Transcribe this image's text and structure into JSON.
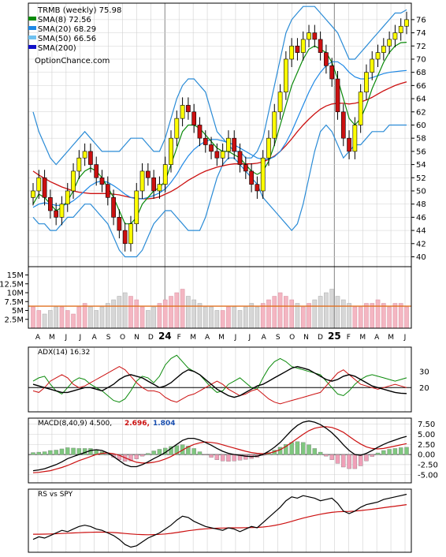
{
  "chart_data": {
    "type": "line",
    "ticker_label": "TRMB (weekly) 75.98",
    "watermark": "OptionChance.com",
    "legend": [
      {
        "label": "SMA(8) 72.56",
        "color": "#0a8a0a"
      },
      {
        "label": "SMA(20) 68.29",
        "color": "#1e88e5"
      },
      {
        "label": "SMA(50) 66.56",
        "color": "#6ec1f0"
      },
      {
        "label": "SMA(200)",
        "color": "#1010c8"
      }
    ],
    "x_labels": [
      "A",
      "M",
      "J",
      "J",
      "A",
      "S",
      "O",
      "N",
      "D",
      "24",
      "F",
      "M",
      "A",
      "M",
      "J",
      "J",
      "A",
      "S",
      "O",
      "N",
      "D",
      "25",
      "F",
      "M",
      "A",
      "M",
      "J"
    ],
    "price_axis": {
      "ticks": [
        40,
        42,
        44,
        46,
        48,
        50,
        52,
        54,
        56,
        58,
        60,
        62,
        64,
        66,
        68,
        70,
        72,
        74,
        76
      ],
      "min": 38.5,
      "max": 78.5
    },
    "volume_axis": {
      "ticks": [
        "2.5M",
        "5M",
        "7.5M",
        "10M",
        "12.5M",
        "15M"
      ],
      "values": [
        2.5,
        5,
        7.5,
        10,
        12.5,
        15
      ],
      "max": 16
    },
    "price_series": {
      "close": [
        50,
        52,
        49,
        47,
        46,
        48,
        50,
        53,
        55,
        56,
        54,
        52,
        51,
        49,
        46,
        44,
        42,
        45,
        50,
        53,
        52,
        50,
        51,
        54,
        58,
        61,
        63,
        62,
        60,
        58,
        57,
        56,
        55,
        56,
        58,
        56,
        54,
        53,
        51,
        50,
        55,
        58,
        62,
        65,
        70,
        72,
        71,
        73,
        74,
        73,
        71,
        69,
        67,
        62,
        58,
        56,
        60,
        65,
        68,
        70,
        71,
        72,
        73,
        74,
        75,
        76
      ],
      "sma8": [
        48,
        49.5,
        49,
        48,
        47,
        47.5,
        48.5,
        50,
        52,
        53,
        53.5,
        53,
        52,
        50.5,
        49,
        47,
        45,
        45,
        46,
        48,
        49,
        50,
        50.5,
        51.5,
        54,
        56.5,
        59,
        60,
        60,
        59.5,
        58.5,
        57.5,
        56.5,
        56,
        56,
        55.5,
        55,
        54,
        53,
        52.5,
        53,
        54.5,
        57,
        60,
        63,
        66,
        68,
        70,
        71.5,
        72,
        71.5,
        71,
        69.5,
        67,
        64,
        61,
        60,
        61,
        63,
        65.5,
        67.5,
        69.5,
        71,
        72,
        72.5,
        72.56
      ],
      "sma20": [
        47.5,
        48,
        48.2,
        48,
        47.8,
        47.8,
        48,
        48.5,
        49.2,
        50,
        50.8,
        51.3,
        51.5,
        51.3,
        50.8,
        50.2,
        49.5,
        49,
        48.8,
        48.8,
        49,
        49.3,
        49.7,
        50.3,
        51.3,
        52.5,
        54,
        55.3,
        56.3,
        57,
        57.5,
        57.8,
        57.8,
        57.6,
        57.3,
        57,
        56.5,
        56,
        55.5,
        55,
        54.8,
        54.8,
        55.2,
        56,
        57.3,
        59,
        61,
        63,
        65,
        66.7,
        68,
        69,
        69.6,
        69.6,
        69,
        68,
        67.3,
        67,
        67,
        67.2,
        67.5,
        67.8,
        68,
        68.1,
        68.2,
        68.29
      ],
      "sma50": [
        53,
        52.4,
        51.9,
        51.4,
        51,
        50.6,
        50.3,
        50,
        49.8,
        49.7,
        49.6,
        49.6,
        49.6,
        49.6,
        49.5,
        49.4,
        49.2,
        49,
        48.9,
        48.8,
        48.8,
        48.9,
        49.1,
        49.5,
        49.9,
        50.4,
        51,
        51.6,
        52.1,
        52.6,
        53,
        53.3,
        53.6,
        53.8,
        54,
        54.1,
        54.1,
        54.1,
        54.1,
        54.2,
        54.4,
        54.8,
        55.3,
        56,
        56.9,
        57.9,
        59,
        60,
        60.9,
        61.7,
        62.4,
        62.9,
        63.2,
        63.3,
        63.3,
        63.2,
        63.3,
        63.5,
        63.8,
        64.2,
        64.7,
        65.2,
        65.6,
        66,
        66.3,
        66.56
      ],
      "bb_upper": [
        62,
        59,
        57,
        55,
        54,
        55,
        56,
        57,
        58,
        59,
        58,
        57,
        56,
        56,
        56,
        56,
        57,
        58,
        58,
        58,
        57,
        56,
        56,
        58,
        61,
        64,
        66,
        67,
        67,
        66,
        65,
        62,
        59,
        58,
        57,
        56,
        56,
        55,
        55,
        56,
        58,
        62,
        66,
        70,
        74,
        76,
        77,
        78,
        78,
        78,
        77,
        76,
        75,
        74,
        72,
        70,
        70,
        71,
        72,
        73,
        74,
        75,
        76,
        77,
        77,
        77.5
      ],
      "bb_lower": [
        46,
        45,
        45,
        44,
        44,
        45,
        46,
        46,
        47,
        48,
        48,
        47,
        46,
        45,
        43,
        41,
        40,
        40,
        40,
        41,
        43,
        45,
        46,
        47,
        47,
        46,
        45,
        44,
        44,
        44,
        46,
        49,
        52,
        54,
        55,
        55,
        54,
        53,
        52,
        51,
        49,
        48,
        47,
        46,
        45,
        44,
        45,
        48,
        52,
        56,
        59,
        60,
        59,
        57,
        55,
        56,
        57,
        57,
        58,
        59,
        59,
        59,
        60,
        60,
        60,
        60
      ]
    },
    "volume": [
      6,
      5,
      4,
      5,
      6,
      6,
      5,
      4,
      6,
      7,
      6,
      5,
      6,
      7,
      8,
      9,
      10,
      9,
      8,
      6,
      5,
      6,
      7,
      8,
      9,
      10,
      11,
      9,
      8,
      7,
      6,
      6,
      5,
      5,
      6,
      6,
      5,
      6,
      7,
      6,
      7,
      8,
      9,
      10,
      9,
      8,
      7,
      6,
      7,
      8,
      9,
      10,
      11,
      9,
      8,
      7,
      6,
      6,
      7,
      7,
      8,
      7,
      6,
      7,
      7,
      6
    ],
    "volume_avg": 6.2,
    "indicators": [
      {
        "label": "ADX(14) 16.32",
        "ticks": [
          "20",
          "30"
        ],
        "values": [
          20,
          30
        ],
        "min": 5,
        "max": 45
      },
      {
        "label": "MACD(8,40,9) 4.500,",
        "signal_label": "2.696,",
        "hist_label": "1.804",
        "ticks": [
          "7.50",
          "5.00",
          "2.50",
          "0.00",
          "-2.50",
          "-5.00"
        ],
        "values": [
          7.5,
          5,
          2.5,
          0,
          -2.5,
          -5
        ],
        "min": -7,
        "max": 9
      },
      {
        "label": "RS vs SPY",
        "ticks": [],
        "values": [],
        "min": 0,
        "max": 1
      }
    ],
    "adx_series": {
      "adx": [
        22,
        21,
        20,
        19,
        18,
        17,
        17,
        18,
        19,
        20,
        20,
        19,
        18,
        20,
        22,
        25,
        27,
        28,
        27,
        26,
        24,
        22,
        20,
        21,
        23,
        26,
        29,
        31,
        30,
        28,
        25,
        22,
        19,
        17,
        15,
        14,
        15,
        17,
        19,
        21,
        22,
        24,
        26,
        28,
        30,
        32,
        33,
        32,
        31,
        29,
        27,
        25,
        24,
        25,
        27,
        28,
        27,
        25,
        23,
        21,
        20,
        19,
        18,
        17,
        16.5,
        16.32
      ],
      "plus": [
        24,
        26,
        27,
        22,
        18,
        16,
        20,
        24,
        26,
        25,
        22,
        20,
        18,
        15,
        12,
        11,
        13,
        18,
        24,
        27,
        26,
        23,
        27,
        34,
        38,
        40,
        36,
        32,
        30,
        28,
        24,
        20,
        17,
        18,
        22,
        24,
        26,
        23,
        20,
        19,
        26,
        32,
        36,
        38,
        36,
        33,
        32,
        31,
        30,
        29,
        28,
        24,
        20,
        16,
        15,
        18,
        22,
        25,
        27,
        28,
        27,
        26,
        25,
        24,
        25,
        26
      ],
      "minus": [
        18,
        17,
        20,
        24,
        26,
        28,
        26,
        22,
        20,
        21,
        23,
        25,
        27,
        29,
        31,
        33,
        31,
        27,
        23,
        20,
        18,
        18,
        17,
        14,
        12,
        11,
        13,
        15,
        16,
        18,
        20,
        22,
        24,
        22,
        19,
        17,
        15,
        16,
        18,
        19,
        16,
        13,
        11,
        10,
        11,
        12,
        13,
        14,
        15,
        16,
        17,
        21,
        25,
        29,
        31,
        28,
        25,
        22,
        21,
        20,
        19,
        20,
        21,
        22,
        21,
        20
      ]
    },
    "macd_series": {
      "macd": [
        -4,
        -3.8,
        -3.5,
        -3,
        -2.5,
        -1.8,
        -1,
        -0.5,
        0,
        0.5,
        1,
        1.2,
        1,
        0.4,
        -0.5,
        -1.5,
        -2.5,
        -3,
        -3,
        -2.5,
        -1.8,
        -1,
        -0.3,
        0.5,
        1.5,
        2.5,
        3.5,
        4,
        4,
        3.6,
        3,
        2.3,
        1.5,
        0.8,
        0.3,
        0,
        -0.2,
        -0.4,
        -0.5,
        -0.4,
        0,
        0.8,
        1.8,
        3,
        4.5,
        6,
        7.2,
        8,
        8.3,
        8,
        7.4,
        6.5,
        5.4,
        4,
        2.4,
        1,
        0,
        -0.2,
        0.3,
        1,
        1.8,
        2.5,
        3.1,
        3.6,
        4.1,
        4.5
      ],
      "signal": [
        -4.5,
        -4.4,
        -4.2,
        -4,
        -3.6,
        -3.2,
        -2.7,
        -2.1,
        -1.5,
        -1,
        -0.5,
        0,
        0.3,
        0.4,
        0.2,
        -0.2,
        -0.8,
        -1.4,
        -1.9,
        -2.1,
        -2.1,
        -1.9,
        -1.6,
        -1.1,
        -0.5,
        0.3,
        1.1,
        1.9,
        2.5,
        2.9,
        3.1,
        3,
        2.8,
        2.4,
        2,
        1.6,
        1.2,
        0.8,
        0.5,
        0.3,
        0.2,
        0.3,
        0.7,
        1.2,
        2,
        3,
        4,
        5,
        5.9,
        6.5,
        6.8,
        6.9,
        6.7,
        6.2,
        5.5,
        4.5,
        3.5,
        2.6,
        1.9,
        1.5,
        1.4,
        1.5,
        1.8,
        2.1,
        2.4,
        2.696
      ]
    },
    "rs_series": {
      "rs": [
        30,
        32,
        31,
        33,
        35,
        37,
        36,
        38,
        40,
        41,
        40,
        38,
        37,
        35,
        33,
        30,
        26,
        24,
        25,
        28,
        31,
        33,
        35,
        38,
        41,
        45,
        48,
        47,
        44,
        42,
        40,
        39,
        38,
        37,
        39,
        38,
        36,
        38,
        40,
        39,
        43,
        47,
        51,
        55,
        60,
        63,
        62,
        64,
        63,
        62,
        60,
        61,
        62,
        58,
        52,
        50,
        52,
        55,
        57,
        58,
        59,
        61,
        62,
        63,
        64,
        65
      ],
      "rs_avg": [
        34,
        34,
        34.1,
        34.2,
        34.4,
        34.6,
        34.8,
        35,
        35.2,
        35.4,
        35.5,
        35.6,
        35.6,
        35.5,
        35.3,
        35,
        34.6,
        34.2,
        33.9,
        33.7,
        33.6,
        33.7,
        33.9,
        34.2,
        34.7,
        35.3,
        36,
        36.7,
        37.3,
        37.8,
        38.2,
        38.5,
        38.7,
        38.8,
        38.9,
        39,
        39,
        39.1,
        39.2,
        39.3,
        39.6,
        40.1,
        40.8,
        41.7,
        42.8,
        44,
        45.3,
        46.5,
        47.6,
        48.6,
        49.5,
        50.3,
        51,
        51.4,
        51.6,
        51.7,
        52,
        52.4,
        52.9,
        53.4,
        54,
        54.6,
        55.2,
        55.8,
        56.4,
        57
      ]
    },
    "colors": {
      "up": "#ffff00",
      "down": "#cc1010",
      "wick": "#000000",
      "sma200": "#cc1010",
      "vol_up": "#f4b6c2",
      "vol_down": "#d7d7d7",
      "vol_avg": "#e07020",
      "macd_hist_up": "#7fc77f",
      "macd_hist_down": "#f0a0b8",
      "signal": "#cc1010",
      "adx": "#000000",
      "plus_di": "#0a8a0a",
      "minus_di": "#cc1010",
      "sig_text": "#cc1010",
      "hist_text": "#1a4fb0",
      "grid": "#d0d0d0"
    }
  }
}
